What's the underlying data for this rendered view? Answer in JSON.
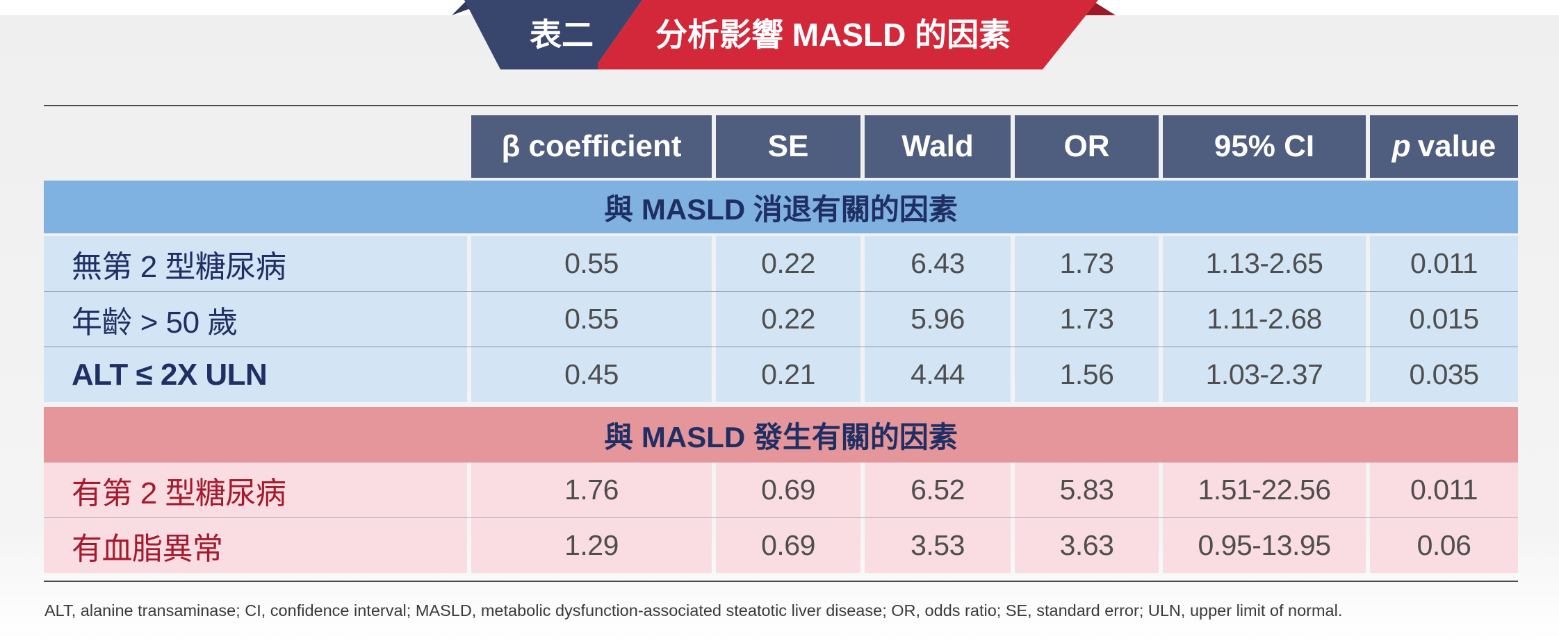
{
  "banner": {
    "left_label": "表二",
    "right_label": "分析影響 MASLD 的因素",
    "colors": {
      "left": "#38466e",
      "right": "#d3283a",
      "accent": "#9c1a28"
    }
  },
  "table": {
    "headers": {
      "beta": "β coefficient",
      "se": "SE",
      "wald": "Wald",
      "or": "OR",
      "ci": "95% CI",
      "p_italic": "p",
      "p_rest": "value"
    },
    "section_regression": {
      "title": "與 MASLD 消退有關的因素",
      "rows": [
        {
          "label": "無第 2 型糖尿病",
          "beta": "0.55",
          "se": "0.22",
          "wald": "6.43",
          "or": "1.73",
          "ci": "1.13-2.65",
          "p": "0.011"
        },
        {
          "label": "年齡 > 50 歲",
          "beta": "0.55",
          "se": "0.22",
          "wald": "5.96",
          "or": "1.73",
          "ci": "1.11-2.68",
          "p": "0.015"
        },
        {
          "label": "ALT ≤ 2X ULN",
          "beta": "0.45",
          "se": "0.21",
          "wald": "4.44",
          "or": "1.56",
          "ci": "1.03-2.37",
          "p": "0.035"
        }
      ]
    },
    "section_incidence": {
      "title": "與 MASLD 發生有關的因素",
      "rows": [
        {
          "label": "有第 2 型糖尿病",
          "beta": "1.76",
          "se": "0.69",
          "wald": "6.52",
          "or": "5.83",
          "ci": "1.51-22.56",
          "p": "0.011"
        },
        {
          "label": "有血脂異常",
          "beta": "1.29",
          "se": "0.69",
          "wald": "3.53",
          "or": "3.63",
          "ci": "0.95-13.95",
          "p": "0.06"
        }
      ]
    }
  },
  "footnote": "ALT, alanine transaminase; CI, confidence interval; MASLD, metabolic dysfunction-associated steatotic liver disease; OR, odds ratio; SE, standard error; ULN, upper limit of normal.",
  "colors": {
    "header_bg": "#4f5d7e",
    "section_blue": "#7fb2e1",
    "row_blue": "#d3e5f5",
    "section_pink": "#e4969a",
    "row_pink": "#f9dde2",
    "label_blue": "#1f2f63",
    "label_red": "#a51b2d"
  }
}
